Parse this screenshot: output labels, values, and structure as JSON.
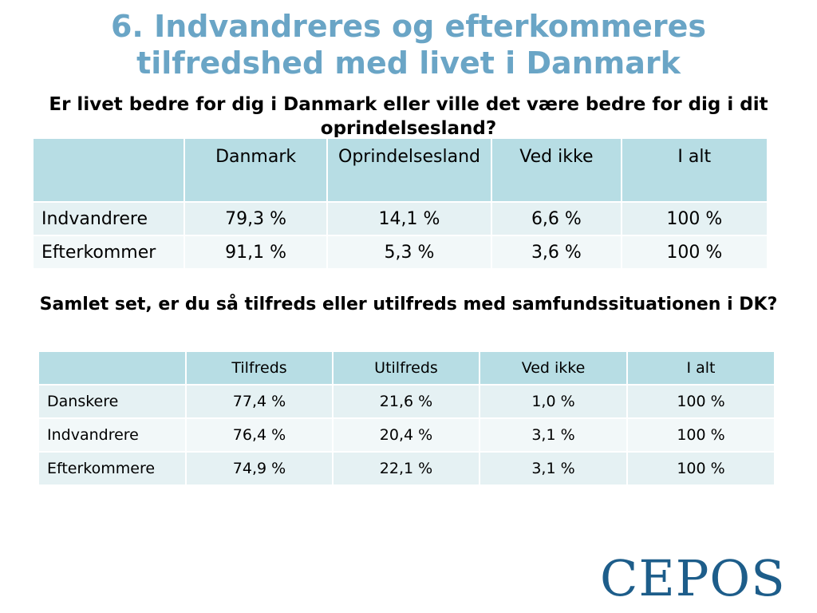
{
  "title": {
    "line1": "6. Indvandreres og efterkommeres",
    "line2": "tilfredshed med livet i Danmark"
  },
  "question1": "Er livet bedre for dig i Danmark eller ville det være bedre for dig i dit oprindelsesland?",
  "table1": {
    "headers": [
      "",
      "Danmark",
      "Oprindelsesland",
      "Ved ikke",
      "I alt"
    ],
    "rows": [
      {
        "label": "Indvandrere",
        "cells": [
          "79,3 %",
          "14,1 %",
          "6,6 %",
          "100 %"
        ]
      },
      {
        "label": "Efterkommer",
        "cells": [
          "91,1 %",
          "5,3 %",
          "3,6 %",
          "100 %"
        ]
      }
    ]
  },
  "question2": "Samlet set, er du så tilfreds eller utilfreds med samfundssituationen i DK?",
  "table2": {
    "headers": [
      "",
      "Tilfreds",
      "Utilfreds",
      "Ved ikke",
      "I alt"
    ],
    "rows": [
      {
        "label": "Danskere",
        "cells": [
          "77,4 %",
          "21,6 %",
          "1,0 %",
          "100 %"
        ]
      },
      {
        "label": "Indvandrere",
        "cells": [
          "76,4 %",
          "20,4 %",
          "3,1 %",
          "100 %"
        ]
      },
      {
        "label": "Efterkommere",
        "cells": [
          "74,9 %",
          "22,1 %",
          "3,1 %",
          "100 %"
        ]
      }
    ]
  },
  "logo": "CEPOS",
  "colors": {
    "title": "#6aa5c6",
    "header_bg": "#b7dde4",
    "row_odd": "#e5f1f3",
    "row_even": "#f2f8f9",
    "logo": "#1d5d8a"
  }
}
